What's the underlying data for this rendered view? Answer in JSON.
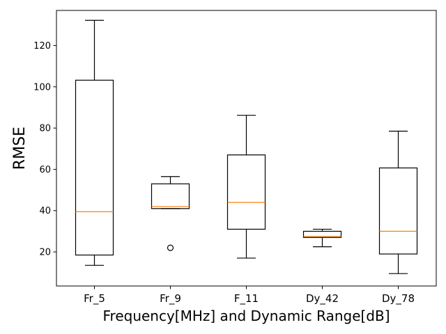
{
  "chart_data": {
    "type": "boxplot",
    "title": "",
    "xlabel": "Frequency[MHz] and Dynamic Range[dB]",
    "ylabel": "RMSE",
    "ylim": [
      3.5,
      137
    ],
    "yticks": [
      20,
      40,
      60,
      80,
      100,
      120
    ],
    "grid": false,
    "categories": [
      "Fr_5",
      "Fr_9",
      "F_11",
      "Dy_42",
      "Dy_78"
    ],
    "boxes": [
      {
        "category": "Fr_5",
        "whisker_low": 13.5,
        "q1": 18.5,
        "median": 39.5,
        "q3": 103.2,
        "whisker_high": 132.2,
        "outliers": []
      },
      {
        "category": "Fr_9",
        "whisker_low": 41.0,
        "q1": 41.0,
        "median": 42.0,
        "q3": 53.0,
        "whisker_high": 56.5,
        "outliers": [
          22.0
        ]
      },
      {
        "category": "F_11",
        "whisker_low": 17.0,
        "q1": 31.0,
        "median": 44.0,
        "q3": 67.0,
        "whisker_high": 86.2,
        "outliers": []
      },
      {
        "category": "Dy_42",
        "whisker_low": 22.5,
        "q1": 27.0,
        "median": 27.5,
        "q3": 30.0,
        "whisker_high": 31.0,
        "outliers": []
      },
      {
        "category": "Dy_78",
        "whisker_low": 9.5,
        "q1": 19.0,
        "median": 30.0,
        "q3": 60.7,
        "whisker_high": 78.5,
        "outliers": []
      }
    ],
    "colors": {
      "box": "#000000",
      "median": "#ff7f0e",
      "whisker": "#000000",
      "flier": "#000000"
    }
  }
}
